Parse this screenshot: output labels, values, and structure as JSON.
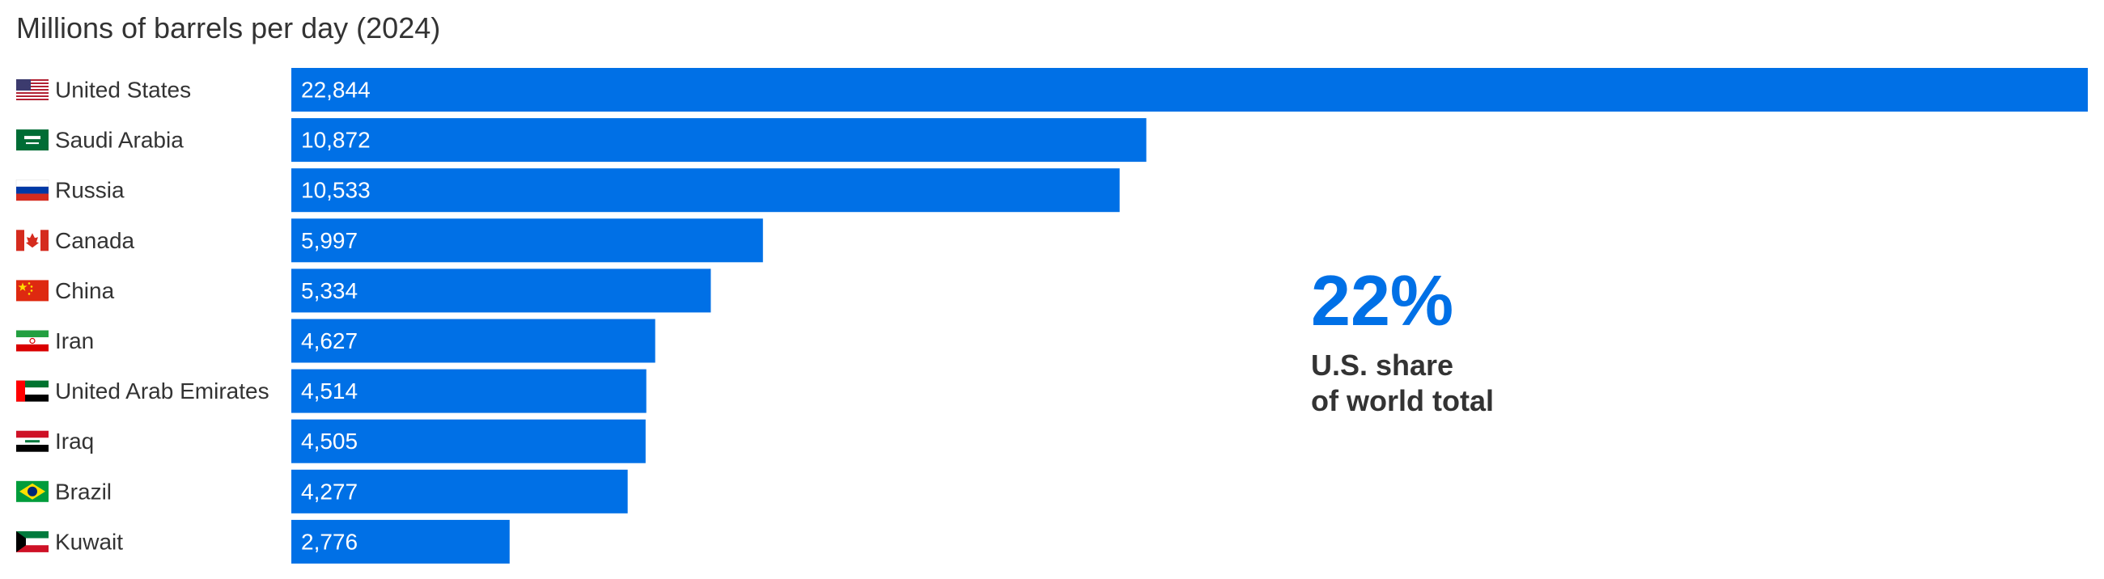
{
  "chart_data": {
    "type": "bar",
    "orientation": "horizontal",
    "title": "Millions of barrels per day (2024)",
    "categories": [
      "United States",
      "Saudi Arabia",
      "Russia",
      "Canada",
      "China",
      "Iran",
      "United Arab Emirates",
      "Iraq",
      "Brazil",
      "Kuwait"
    ],
    "values": [
      22844,
      10872,
      10533,
      5997,
      5334,
      4627,
      4514,
      4505,
      4277,
      2776
    ],
    "value_labels": [
      "22,844",
      "10,872",
      "10,533",
      "5,997",
      "5,334",
      "4,627",
      "4,514",
      "4,505",
      "4,277",
      "2,776"
    ],
    "flag_icons": [
      "us-flag-icon",
      "saudi-arabia-flag-icon",
      "russia-flag-icon",
      "canada-flag-icon",
      "china-flag-icon",
      "iran-flag-icon",
      "uae-flag-icon",
      "iraq-flag-icon",
      "brazil-flag-icon",
      "kuwait-flag-icon"
    ],
    "xlim": [
      0,
      22844
    ],
    "grid": false,
    "legend": "none",
    "bar_color": "#0070e6",
    "value_label_color": "#ffffff"
  },
  "callout": {
    "value": "22%",
    "text_line1": "U.S. share",
    "text_line2": "of world total",
    "value_color": "#0070e6"
  }
}
